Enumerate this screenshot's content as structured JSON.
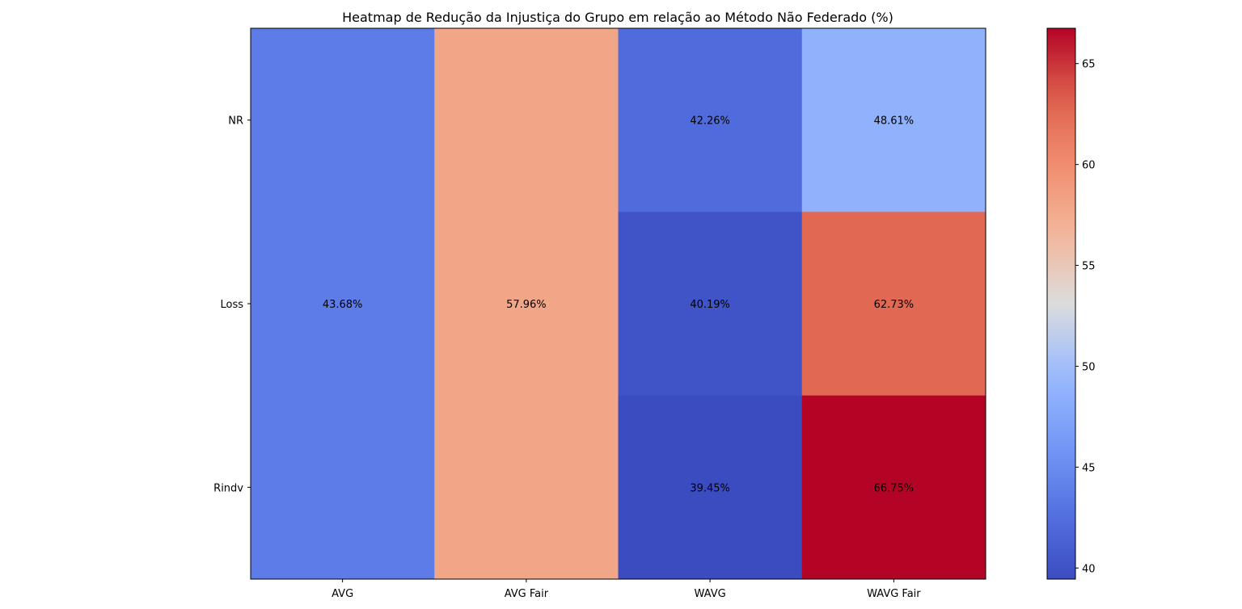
{
  "chart_data": {
    "type": "heatmap",
    "title": "Heatmap de Redução da Injustiça do Grupo em relação ao Método Não Federado (%)",
    "x_categories": [
      "AVG",
      "AVG Fair",
      "WAVG",
      "WAVG Fair"
    ],
    "y_categories": [
      "NR",
      "Loss",
      "Rindv"
    ],
    "cells": [
      {
        "x": "AVG",
        "y": "NR",
        "value": 43.68
      },
      {
        "x": "AVG",
        "y": "Loss",
        "value": 43.68,
        "label": "43.68%"
      },
      {
        "x": "AVG",
        "y": "Rindv",
        "value": 43.68
      },
      {
        "x": "AVG Fair",
        "y": "NR",
        "value": 57.96
      },
      {
        "x": "AVG Fair",
        "y": "Loss",
        "value": 57.96,
        "label": "57.96%"
      },
      {
        "x": "AVG Fair",
        "y": "Rindv",
        "value": 57.96
      },
      {
        "x": "WAVG",
        "y": "NR",
        "value": 42.26,
        "label": "42.26%"
      },
      {
        "x": "WAVG",
        "y": "Loss",
        "value": 40.19,
        "label": "40.19%"
      },
      {
        "x": "WAVG",
        "y": "Rindv",
        "value": 39.45,
        "label": "39.45%"
      },
      {
        "x": "WAVG Fair",
        "y": "NR",
        "value": 48.61,
        "label": "48.61%"
      },
      {
        "x": "WAVG Fair",
        "y": "Loss",
        "value": 62.73,
        "label": "62.73%"
      },
      {
        "x": "WAVG Fair",
        "y": "Rindv",
        "value": 66.75,
        "label": "66.75%"
      }
    ],
    "colormap": "coolwarm",
    "colorbar": {
      "range": [
        39.45,
        66.75
      ],
      "ticks": [
        40,
        45,
        50,
        55,
        60,
        65
      ]
    },
    "grid": false
  }
}
